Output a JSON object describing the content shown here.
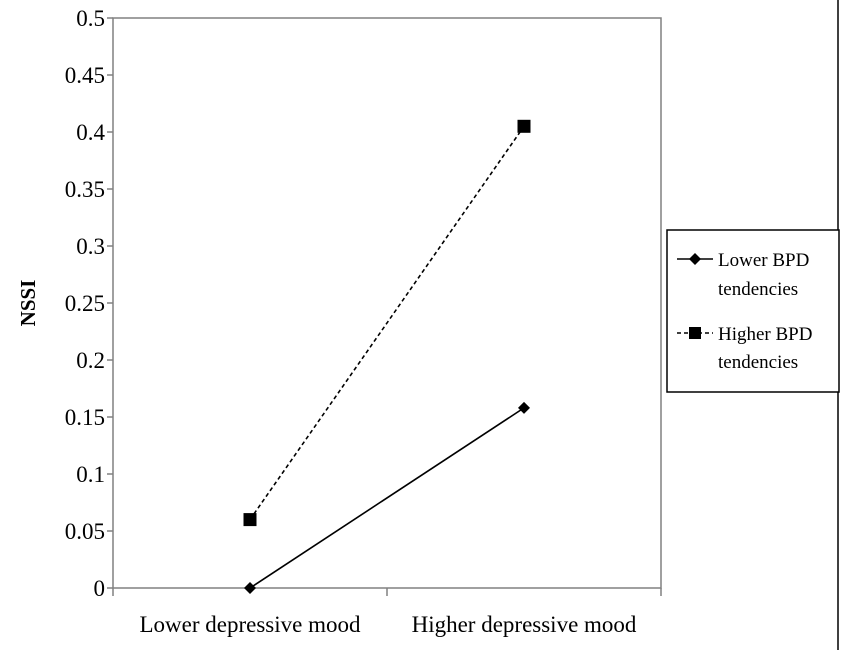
{
  "chart_data": {
    "type": "line",
    "categories": [
      "Lower depressive mood",
      "Higher depressive mood"
    ],
    "series": [
      {
        "name": "Lower BPD tendencies",
        "values": [
          0.0,
          0.158
        ],
        "marker": "diamond",
        "line": "solid",
        "color": "#000000"
      },
      {
        "name": "Higher BPD tendencies",
        "values": [
          0.06,
          0.405
        ],
        "marker": "square",
        "line": "dashed",
        "color": "#000000"
      }
    ],
    "title": "",
    "xlabel": "",
    "ylabel": "NSSI",
    "ylim": [
      0,
      0.5
    ],
    "yticks": [
      "0",
      "0.05",
      "0.1",
      "0.15",
      "0.2",
      "0.25",
      "0.3",
      "0.35",
      "0.4",
      "0.45",
      "0.5"
    ],
    "grid": false,
    "legend": {
      "position": "right",
      "entries": [
        {
          "line1": "Lower BPD",
          "line2": "tendencies"
        },
        {
          "line1": "Higher BPD",
          "line2": "tendencies"
        }
      ]
    }
  }
}
